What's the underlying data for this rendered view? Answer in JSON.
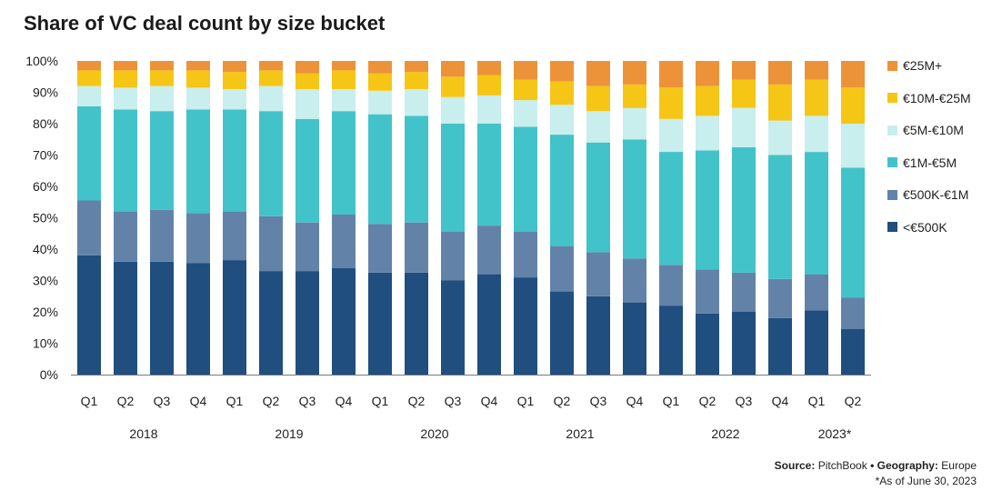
{
  "title": "Share of VC deal count by size bucket",
  "source": {
    "source_label": "Source:",
    "source_value": "PitchBook",
    "separator": "•",
    "geo_label": "Geography:",
    "geo_value": "Europe",
    "note": "*As of June 30, 2023"
  },
  "chart_data": {
    "type": "bar",
    "stacked": true,
    "ylim": [
      0,
      100
    ],
    "yticks": [
      "0%",
      "10%",
      "20%",
      "30%",
      "40%",
      "50%",
      "60%",
      "70%",
      "80%",
      "90%",
      "100%"
    ],
    "categories": [
      "Q1",
      "Q2",
      "Q3",
      "Q4",
      "Q1",
      "Q2",
      "Q3",
      "Q4",
      "Q1",
      "Q2",
      "Q3",
      "Q4",
      "Q1",
      "Q2",
      "Q3",
      "Q4",
      "Q1",
      "Q2",
      "Q3",
      "Q4",
      "Q1",
      "Q2"
    ],
    "year_groups": [
      {
        "label": "2018",
        "start": 0,
        "end": 3
      },
      {
        "label": "2019",
        "start": 4,
        "end": 7
      },
      {
        "label": "2020",
        "start": 8,
        "end": 11
      },
      {
        "label": "2021",
        "start": 12,
        "end": 15
      },
      {
        "label": "2022",
        "start": 16,
        "end": 19
      },
      {
        "label": "2023*",
        "start": 20,
        "end": 21
      }
    ],
    "legend_position": "right",
    "grid": false,
    "series": [
      {
        "name": "<€500K",
        "color": "#1f4e7f",
        "values": [
          38,
          36,
          36,
          35.5,
          36.5,
          33,
          33,
          34,
          32.5,
          32.5,
          30,
          32,
          31,
          26.5,
          25,
          23,
          22,
          19.5,
          20,
          18,
          20.5,
          14.5
        ]
      },
      {
        "name": "€500K-€1M",
        "color": "#6283a7",
        "values": [
          17.5,
          16,
          16.5,
          16,
          15.5,
          17.5,
          15.5,
          17,
          15.5,
          16,
          15.5,
          15.5,
          14.5,
          14.5,
          14,
          14,
          13,
          14,
          12.5,
          12.5,
          11.5,
          10
        ]
      },
      {
        "name": "€1M-€5M",
        "color": "#42c3c9",
        "values": [
          30,
          32.5,
          31.5,
          33,
          32.5,
          33.5,
          33,
          33,
          35,
          34,
          34.5,
          32.5,
          33.5,
          35.5,
          35,
          38,
          36,
          38,
          40,
          39.5,
          39,
          41.5
        ]
      },
      {
        "name": "€5M-€10M",
        "color": "#c9eeee",
        "values": [
          6.5,
          7,
          8,
          7,
          6.5,
          8,
          9.5,
          7,
          7.5,
          8.5,
          8.5,
          9,
          8.5,
          9.5,
          10,
          10,
          10.5,
          11,
          12.5,
          11,
          11.5,
          14
        ]
      },
      {
        "name": "€10M-€25M",
        "color": "#f5c616",
        "values": [
          5,
          5.5,
          5,
          5.5,
          5.5,
          5,
          5,
          6,
          5.5,
          5.5,
          6.5,
          6.5,
          6.5,
          7.5,
          8,
          7.5,
          10,
          9.5,
          9,
          11.5,
          11.5,
          11.5
        ]
      },
      {
        "name": "€25M+",
        "color": "#ec933a",
        "values": [
          3,
          3,
          3,
          3,
          3.5,
          3,
          4,
          3,
          4,
          3.5,
          5,
          4.5,
          6,
          6.5,
          8,
          7.5,
          8.5,
          8,
          6,
          7.5,
          6,
          8.5
        ]
      }
    ]
  }
}
